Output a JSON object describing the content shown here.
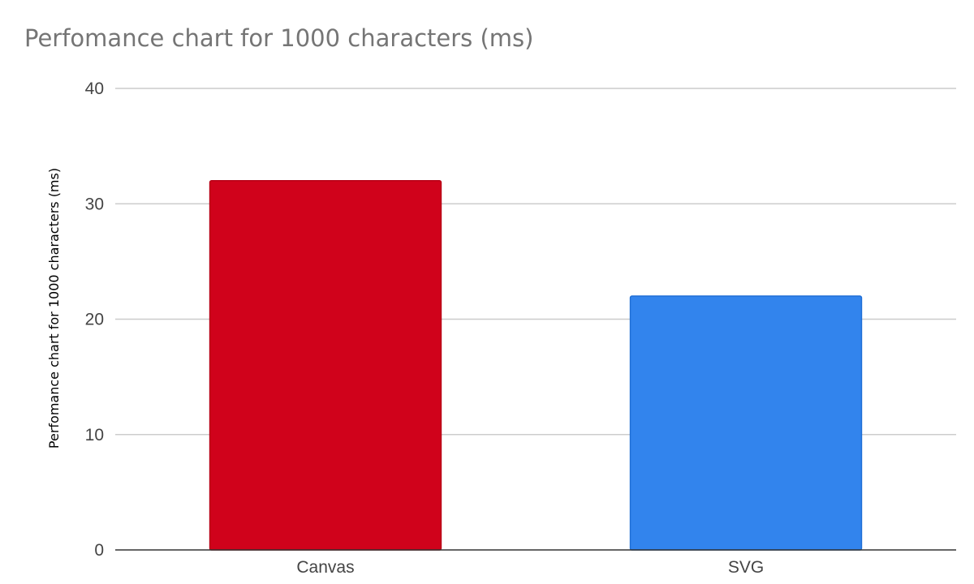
{
  "chart_data": {
    "type": "bar",
    "title": "Perfomance chart for 1000 characters (ms)",
    "xlabel": "",
    "ylabel": "Perfomance chart for 1000 characters (ms)",
    "categories": [
      "Canvas",
      "SVG"
    ],
    "values": [
      32,
      22
    ],
    "colors": [
      "#d0021b",
      "#3284ed"
    ],
    "border_colors": [
      "#b80016",
      "#1f6fd6"
    ],
    "ylim": [
      0,
      40
    ],
    "yticks": [
      0,
      10,
      20,
      30,
      40
    ],
    "grid": true,
    "legend": "none"
  }
}
